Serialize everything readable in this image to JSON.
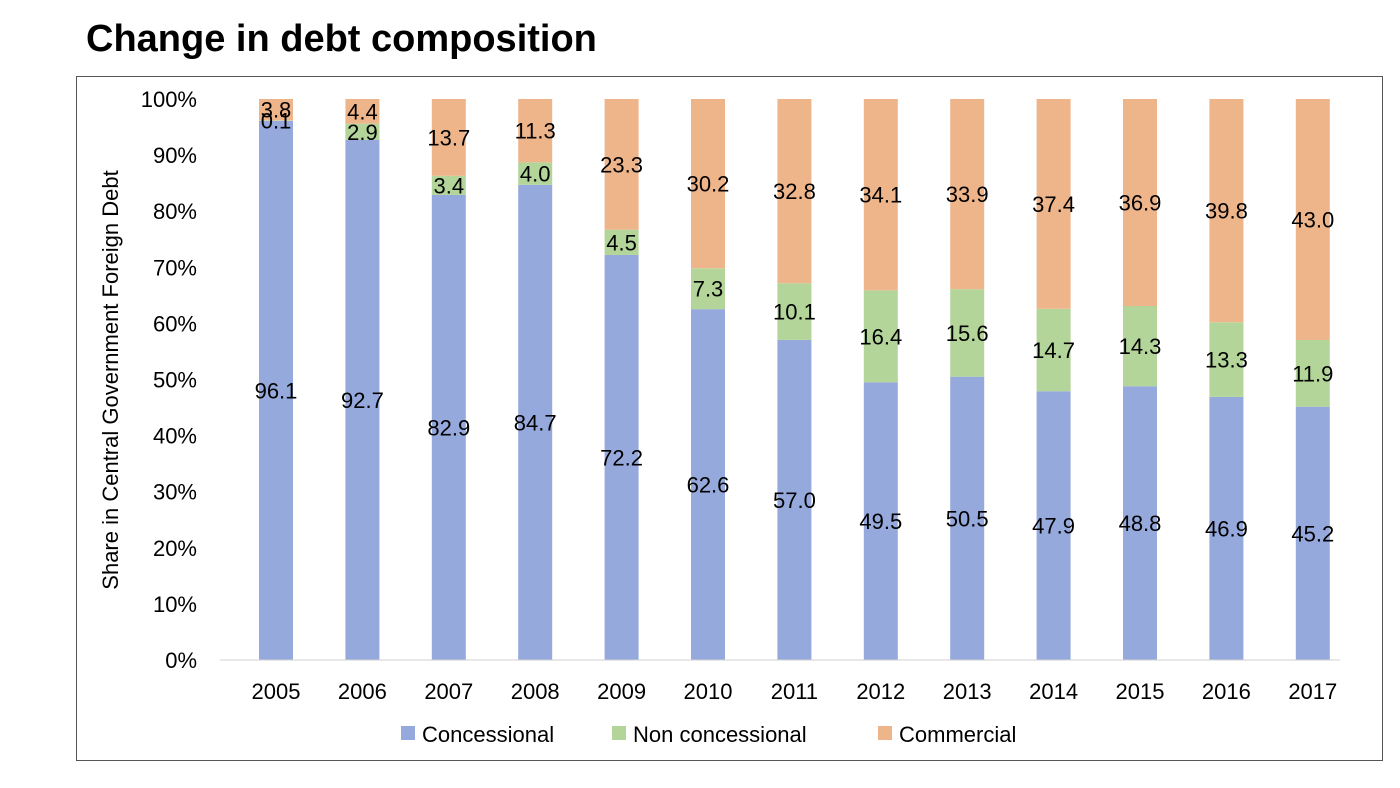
{
  "slide": {
    "title": "Change in debt composition"
  },
  "chart_data": {
    "type": "bar",
    "stacked": true,
    "percent_stacked": true,
    "title": "Change in debt composition",
    "xlabel": "",
    "ylabel": "Share in Central Government Foreign Debt",
    "ylim": [
      0,
      100
    ],
    "yticks": [
      "0%",
      "10%",
      "20%",
      "30%",
      "40%",
      "50%",
      "60%",
      "70%",
      "80%",
      "90%",
      "100%"
    ],
    "categories": [
      "2005",
      "2006",
      "2007",
      "2008",
      "2009",
      "2010",
      "2011",
      "2012",
      "2013",
      "2014",
      "2015",
      "2016",
      "2017"
    ],
    "series": [
      {
        "name": "Concessional",
        "color": "#96a9dc",
        "values": [
          96.1,
          92.7,
          82.9,
          84.7,
          72.2,
          62.6,
          57.0,
          49.5,
          50.5,
          47.9,
          48.8,
          46.9,
          45.2
        ],
        "labels": [
          "96.1",
          "92.7",
          "82.9",
          "84.7",
          "72.2",
          "62.6",
          "57.0",
          "49.5",
          "50.5",
          "47.9",
          "48.8",
          "46.9",
          "45.2"
        ]
      },
      {
        "name": "Non concessional",
        "color": "#b3d59a",
        "values": [
          0.1,
          2.9,
          3.4,
          4.0,
          4.5,
          7.3,
          10.1,
          16.4,
          15.6,
          14.7,
          14.3,
          13.3,
          11.9
        ],
        "labels": [
          "0.1",
          "2.9",
          "3.4",
          "4.0",
          "4.5",
          "7.3",
          "10.1",
          "16.4",
          "15.6",
          "14.7",
          "14.3",
          "13.3",
          "11.9"
        ]
      },
      {
        "name": "Commercial",
        "color": "#efb58a",
        "values": [
          3.8,
          4.4,
          13.7,
          11.3,
          23.3,
          30.2,
          32.8,
          34.1,
          33.9,
          37.4,
          36.9,
          39.8,
          43.0
        ],
        "labels": [
          "3.8",
          "4.4",
          "13.7",
          "11.3",
          "23.3",
          "30.2",
          "32.8",
          "34.1",
          "33.9",
          "37.4",
          "36.9",
          "39.8",
          "43.0"
        ]
      }
    ],
    "legend": {
      "position": "bottom"
    },
    "grid": false
  }
}
